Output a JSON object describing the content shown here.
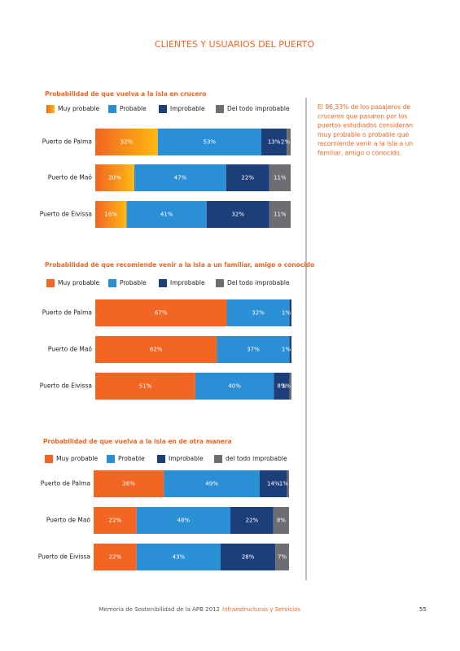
{
  "header": {
    "title": "CLIENTES Y USUARIOS DEL PUERTO"
  },
  "sidebar": {
    "lines": [
      "El 96,33% de los pasajeros de",
      "cruceros que pasaron por los",
      "puertos estudiados consideran",
      "muy probable o probable que",
      "recomiende venir a la isla a un",
      "familiar, amigo o conocido."
    ]
  },
  "footer": {
    "text": "Memoria de Sostenibilidad de la APB 2012",
    "section": "Infraestructuras y Servicios",
    "page": "55"
  },
  "chart_data": [
    {
      "type": "bar",
      "orientation": "horizontal",
      "stacked": true,
      "title": "Probabilidad de que vuelva a la isla en crucero",
      "categories": [
        "Puerto de Palma",
        "Puerto de Maó",
        "Puerto de Eivissa"
      ],
      "series": [
        {
          "name": "Muy probable",
          "color": "#f26522",
          "values": [
            32,
            20,
            16
          ],
          "value_labels": [
            "32%",
            "20%",
            "16%"
          ]
        },
        {
          "name": "Probable",
          "color": "#2b8fd6",
          "values": [
            53,
            47,
            41
          ],
          "value_labels": [
            "53%",
            "47%",
            "41%"
          ]
        },
        {
          "name": "Improbable",
          "color": "#1c3f7a",
          "values": [
            13,
            22,
            32
          ],
          "value_labels": [
            "13%",
            "22%",
            "32%"
          ]
        },
        {
          "name": "Del todo improbable",
          "color": "#6d6e71",
          "values": [
            2,
            11,
            11
          ],
          "value_labels": [
            "2%",
            "11%",
            "11%"
          ]
        }
      ]
    },
    {
      "type": "bar",
      "orientation": "horizontal",
      "stacked": true,
      "title": "Probabilidad de que recomiende venir a la isla a un familiar, amigo o conocido",
      "categories": [
        "Puerto de Palma",
        "Puerto de Maó",
        "Puerto de Eivissa"
      ],
      "series": [
        {
          "name": "Muy probable",
          "color": "#f26522",
          "values": [
            67,
            62,
            51
          ],
          "value_labels": [
            "67%",
            "62%",
            "51%"
          ]
        },
        {
          "name": "Probable",
          "color": "#2b8fd6",
          "values": [
            32,
            37,
            40
          ],
          "value_labels": [
            "32%",
            "37%",
            "40%"
          ]
        },
        {
          "name": "Improbable",
          "color": "#1c3f7a",
          "values": [
            1,
            1,
            8
          ],
          "value_labels": [
            "1%",
            "1%",
            "8%"
          ]
        },
        {
          "name": "Del todo improbable",
          "color": "#6d6e71",
          "values": [
            0,
            0,
            1
          ],
          "value_labels": [
            null,
            null,
            "1%"
          ]
        }
      ]
    },
    {
      "type": "bar",
      "orientation": "horizontal",
      "stacked": true,
      "title": "Probabilidad de que vuelva a la isla en de otra manera",
      "categories": [
        "Puerto de Palma",
        "Puerto de Maó",
        "Puerto de Eivissa"
      ],
      "series": [
        {
          "name": "Muy probable",
          "color": "#f26522",
          "values": [
            36,
            22,
            22
          ],
          "value_labels": [
            "36%",
            "22%",
            "22%"
          ]
        },
        {
          "name": "Probable",
          "color": "#2b8fd6",
          "values": [
            49,
            48,
            43
          ],
          "value_labels": [
            "49%",
            "48%",
            "43%"
          ]
        },
        {
          "name": "Improbable",
          "color": "#1c3f7a",
          "values": [
            14,
            22,
            28
          ],
          "value_labels": [
            "14%",
            "22%",
            "28%"
          ]
        },
        {
          "name": "del todo improbable",
          "color": "#6d6e71",
          "values": [
            1,
            8,
            7
          ],
          "value_labels": [
            "1%",
            "8%",
            "7%"
          ]
        }
      ]
    }
  ]
}
